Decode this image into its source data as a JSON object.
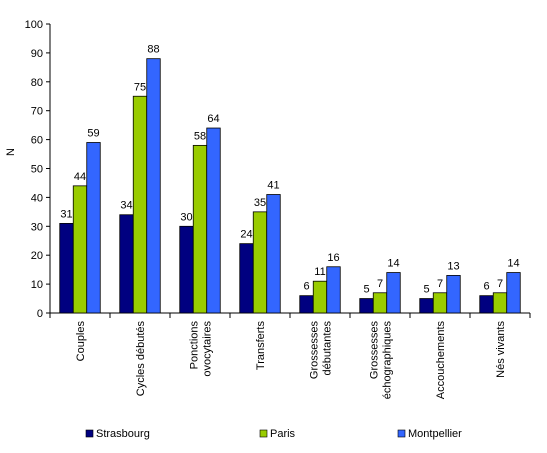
{
  "chart_data": {
    "type": "bar",
    "ylabel": "N",
    "ylim": [
      0,
      100
    ],
    "yticks": [
      0,
      10,
      20,
      30,
      40,
      50,
      60,
      70,
      80,
      90,
      100
    ],
    "grid": false,
    "legend_position": "bottom",
    "categories": [
      [
        "Couples"
      ],
      [
        "Cycles débutés"
      ],
      [
        "Ponctions",
        "ovocytaires"
      ],
      [
        "Transferts"
      ],
      [
        "Grossesses",
        "débutantes"
      ],
      [
        "Grossesses",
        "échographiques"
      ],
      [
        "Accouchements"
      ],
      [
        "Nés vivants"
      ]
    ],
    "series": [
      {
        "name": "Strasbourg",
        "color": "#000080",
        "values": [
          31,
          34,
          30,
          24,
          6,
          5,
          5,
          6
        ]
      },
      {
        "name": "Paris",
        "color": "#99CC00",
        "values": [
          44,
          75,
          58,
          35,
          11,
          7,
          7,
          7
        ]
      },
      {
        "name": "Montpellier",
        "color": "#3366FF",
        "values": [
          59,
          88,
          64,
          41,
          16,
          14,
          13,
          14
        ]
      }
    ]
  }
}
